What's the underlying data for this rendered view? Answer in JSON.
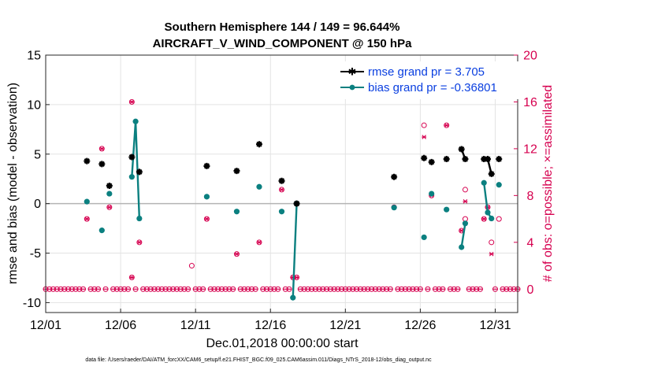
{
  "chart_data": {
    "type": "line",
    "title": [
      "Southern Hemisphere 144 / 149 = 96.644%",
      "AIRCRAFT_V_WIND_COMPONENT @ 150 hPa"
    ],
    "xlabel": "Dec.01,2018 00:00:00 start",
    "ylabel": "rmse and bias (model - observation)",
    "ylabel_right": "# of obs: o=possible; ×=assimilated",
    "x_ticks": [
      "12/01",
      "12/06",
      "12/11",
      "12/16",
      "12/21",
      "12/26",
      "12/31"
    ],
    "x_tick_values": [
      0,
      5,
      10,
      15,
      20,
      25,
      30
    ],
    "xlim": [
      0,
      31.5
    ],
    "ylim": [
      -11,
      15
    ],
    "yticks": [
      -10,
      -5,
      0,
      5,
      10,
      15
    ],
    "ylim_right": [
      -2,
      20
    ],
    "yticks_right": [
      0,
      4,
      8,
      12,
      16,
      20
    ],
    "grid": true,
    "legend_position": "top-right",
    "footer": "data file: /Users/raeder/DAI/ATM_forcXX/CAM6_setup/f.e21.FHIST_BGC.f09_025.CAM6assim.011/Diags_NTrS_2018-12/obs_diag_output.nc",
    "series": [
      {
        "name": "rmse grand pr = 3.705",
        "color": "#000000",
        "points": [
          [
            2.75,
            4.3
          ],
          [
            3.75,
            4.0
          ],
          [
            4.25,
            1.8
          ],
          [
            5.75,
            4.7
          ],
          [
            6.25,
            3.2
          ],
          [
            10.75,
            3.8
          ],
          [
            12.75,
            3.3
          ],
          [
            14.25,
            6.0
          ],
          [
            15.75,
            2.3
          ],
          [
            16.75,
            0.0
          ],
          [
            23.25,
            2.7
          ],
          [
            25.25,
            4.6
          ],
          [
            25.75,
            4.2
          ],
          [
            26.75,
            4.5
          ],
          [
            27.75,
            5.5
          ],
          [
            28.0,
            4.5
          ],
          [
            29.25,
            4.5
          ],
          [
            29.5,
            4.5
          ],
          [
            29.75,
            3.0
          ],
          [
            30.25,
            4.5
          ]
        ]
      },
      {
        "name": "bias grand pr = -0.36801",
        "color": "#0b8080",
        "points": [
          [
            2.75,
            0.2
          ],
          [
            3.75,
            -2.7
          ],
          [
            4.25,
            1.0
          ],
          [
            5.75,
            2.7
          ],
          [
            6.0,
            8.3
          ],
          [
            6.25,
            -1.5
          ],
          [
            10.75,
            0.7
          ],
          [
            12.75,
            -0.8
          ],
          [
            14.25,
            1.7
          ],
          [
            15.75,
            -0.8
          ],
          [
            16.5,
            -9.5
          ],
          [
            16.75,
            0.0
          ],
          [
            23.25,
            -0.4
          ],
          [
            25.25,
            -3.4
          ],
          [
            25.75,
            1.0
          ],
          [
            26.75,
            -0.6
          ],
          [
            27.75,
            -4.4
          ],
          [
            28.0,
            -2.0
          ],
          [
            29.25,
            2.1
          ],
          [
            29.5,
            -0.9
          ],
          [
            29.75,
            -1.5
          ],
          [
            30.25,
            1.9
          ]
        ]
      }
    ],
    "obs_possible": [
      [
        2.75,
        6
      ],
      [
        3.75,
        12
      ],
      [
        4.25,
        7
      ],
      [
        5.75,
        16
      ],
      [
        5.75,
        1
      ],
      [
        6.25,
        4
      ],
      [
        9.75,
        2
      ],
      [
        10.75,
        6
      ],
      [
        12.75,
        3
      ],
      [
        14.25,
        4
      ],
      [
        15.75,
        8.5
      ],
      [
        16.5,
        1
      ],
      [
        16.75,
        1
      ],
      [
        23.25,
        7
      ],
      [
        25.25,
        14
      ],
      [
        25.75,
        8
      ],
      [
        26.75,
        14
      ],
      [
        27.75,
        5
      ],
      [
        28.0,
        8.5
      ],
      [
        28.0,
        6
      ],
      [
        29.25,
        6
      ],
      [
        29.5,
        7
      ],
      [
        29.75,
        4
      ],
      [
        30.25,
        6
      ]
    ],
    "obs_assimilated": [
      [
        2.75,
        6
      ],
      [
        3.75,
        12
      ],
      [
        4.25,
        7
      ],
      [
        5.75,
        16
      ],
      [
        5.75,
        1
      ],
      [
        6.25,
        4
      ],
      [
        10.75,
        6
      ],
      [
        12.75,
        3
      ],
      [
        14.25,
        4
      ],
      [
        15.75,
        8.5
      ],
      [
        16.5,
        1
      ],
      [
        16.75,
        1
      ],
      [
        23.25,
        7
      ],
      [
        25.25,
        13
      ],
      [
        25.75,
        8
      ],
      [
        26.75,
        14
      ],
      [
        27.75,
        5
      ],
      [
        28.0,
        7.5
      ],
      [
        29.25,
        6
      ],
      [
        29.5,
        7
      ],
      [
        29.75,
        3
      ]
    ]
  }
}
